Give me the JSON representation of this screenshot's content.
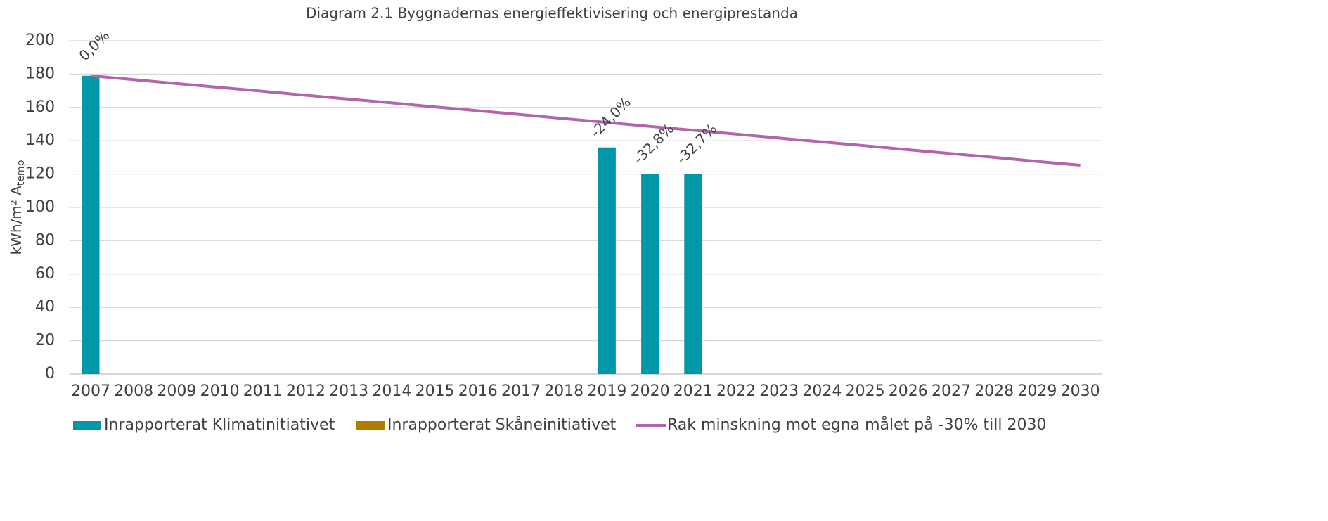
{
  "chart_data": {
    "type": "bar",
    "title": "Diagram 2.1 Byggnadernas energieffektivisering och energiprestanda",
    "ylabel": "kWh/m² A",
    "ylabel_sub": "temp",
    "categories": [
      "2007",
      "2008",
      "2009",
      "2010",
      "2011",
      "2012",
      "2013",
      "2014",
      "2015",
      "2016",
      "2017",
      "2018",
      "2019",
      "2020",
      "2021",
      "2022",
      "2023",
      "2024",
      "2025",
      "2026",
      "2027",
      "2028",
      "2029",
      "2030"
    ],
    "series": [
      {
        "name": "Inrapporterat Klimatinitiativet",
        "type": "bar",
        "color": "#0098a9",
        "values": [
          179,
          null,
          null,
          null,
          null,
          null,
          null,
          null,
          null,
          null,
          null,
          null,
          136,
          120,
          120,
          null,
          null,
          null,
          null,
          null,
          null,
          null,
          null,
          null
        ]
      },
      {
        "name": "Inrapporterat Skåneinitiativet",
        "type": "bar",
        "color": "#b37c00",
        "values": [
          null,
          null,
          null,
          null,
          null,
          null,
          null,
          null,
          null,
          null,
          null,
          null,
          null,
          null,
          null,
          null,
          null,
          null,
          null,
          null,
          null,
          null,
          null,
          null
        ]
      },
      {
        "name": "Rak minskning mot egna målet på -30% till 2030",
        "type": "line",
        "color": "#b264ad",
        "values": [
          179,
          176.7,
          174.3,
          172.0,
          169.7,
          167.3,
          165.0,
          162.7,
          160.3,
          158.0,
          155.7,
          153.3,
          151.0,
          148.6,
          146.3,
          144.0,
          141.6,
          139.3,
          137.0,
          134.6,
          132.3,
          130.0,
          127.6,
          125.3
        ]
      }
    ],
    "annotations": [
      {
        "x": "2007",
        "text": "0,0%"
      },
      {
        "x": "2019",
        "text": "-24,0%"
      },
      {
        "x": "2020",
        "text": "-32,8%"
      },
      {
        "x": "2021",
        "text": "-32,7%"
      }
    ],
    "ylim": [
      0,
      200
    ],
    "yticks": [
      0,
      20,
      40,
      60,
      80,
      100,
      120,
      140,
      160,
      180,
      200
    ],
    "grid": true,
    "legend": "bottom"
  }
}
